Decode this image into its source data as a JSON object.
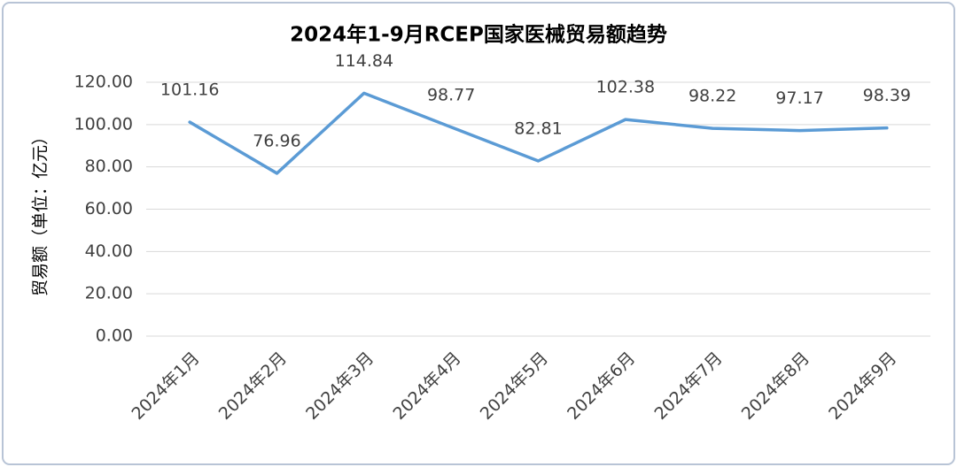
{
  "chart_data": {
    "type": "line",
    "title": "2024年1-9月RCEP国家医械贸易额趋势",
    "y_label": "贸易额（单位：亿元）",
    "categories": [
      "2024年1月",
      "2024年2月",
      "2024年3月",
      "2024年4月",
      "2024年5月",
      "2024年6月",
      "2024年7月",
      "2024年8月",
      "2024年9月"
    ],
    "series": [
      {
        "name": "贸易额",
        "color": "#5b9bd5",
        "values": [
          101.16,
          76.96,
          114.84,
          98.77,
          82.81,
          102.38,
          98.22,
          97.17,
          98.39
        ]
      }
    ],
    "ylim": [
      0,
      120
    ],
    "yticks": [
      {
        "value": 0,
        "label": "0.00"
      },
      {
        "value": 20,
        "label": "20.00"
      },
      {
        "value": 40,
        "label": "40.00"
      },
      {
        "value": 60,
        "label": "60.00"
      },
      {
        "value": 80,
        "label": "80.00"
      },
      {
        "value": 100,
        "label": "100.00"
      },
      {
        "value": 120,
        "label": "120.00"
      }
    ],
    "grid": true
  }
}
